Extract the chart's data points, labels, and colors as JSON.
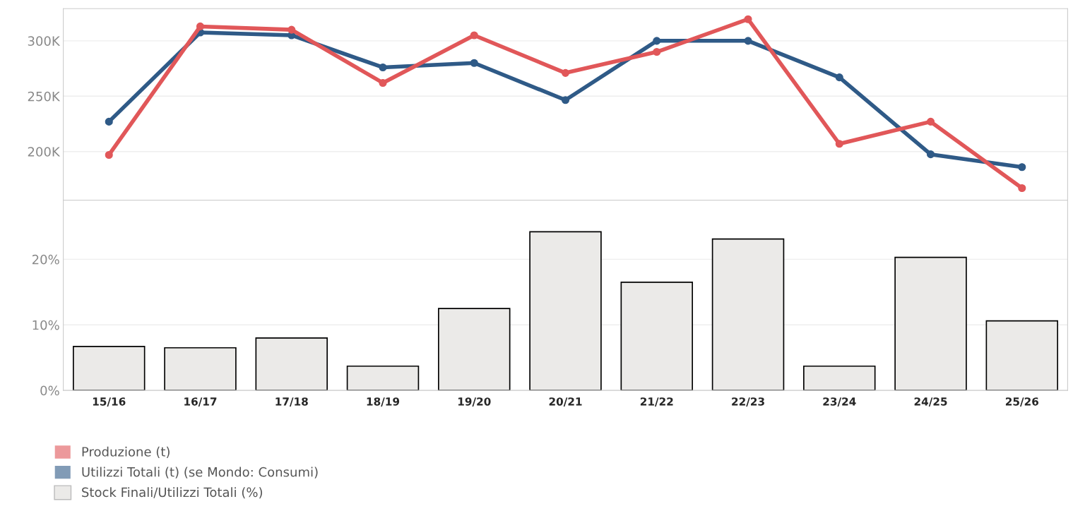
{
  "chart_data": [
    {
      "type": "line",
      "categories": [
        null,
        null,
        null,
        null,
        null,
        null,
        null,
        null,
        null,
        null,
        null
      ],
      "series": [
        {
          "name": "Utilizzi Totali (t) (se Mondo: Consumi)",
          "color": "#2f5a87",
          "values": [
            227000,
            307500,
            305000,
            276000,
            280000,
            246500,
            300000,
            300000,
            267000,
            197500,
            186000
          ]
        },
        {
          "name": "Produzione (t)",
          "color": "#e15759",
          "values": [
            197000,
            313000,
            310000,
            262000,
            305000,
            271000,
            290000,
            319500,
            207000,
            227000,
            167000
          ]
        }
      ],
      "ylim": [
        156000,
        329000
      ],
      "yticks": [
        {
          "value": 200000,
          "label": "200K"
        },
        {
          "value": 250000,
          "label": "250K"
        },
        {
          "value": 300000,
          "label": "300K"
        }
      ],
      "marker": "circle",
      "line_style": "solid",
      "grid": "y",
      "tick_labels": "y",
      "legend": "bottom left"
    },
    {
      "type": "bar",
      "categories": [
        "15/16",
        "16/17",
        "17/18",
        "18/19",
        "19/20",
        "20/21",
        "21/22",
        "22/23",
        "23/24",
        "24/25",
        "25/26"
      ],
      "series": [
        {
          "name": "Stock Finali/Utilizzi Totali (%)",
          "color": "#ebeae8",
          "values": [
            6.7,
            6.5,
            8.0,
            3.7,
            12.5,
            24.2,
            16.5,
            23.1,
            3.7,
            20.3,
            10.6
          ]
        }
      ],
      "ylim": [
        0,
        29
      ],
      "yticks": [
        {
          "value": 0,
          "label": "0%"
        },
        {
          "value": 10,
          "label": "10%"
        },
        {
          "value": 20,
          "label": "20%"
        }
      ],
      "grid": "y",
      "legend": "bottom left"
    }
  ]
}
